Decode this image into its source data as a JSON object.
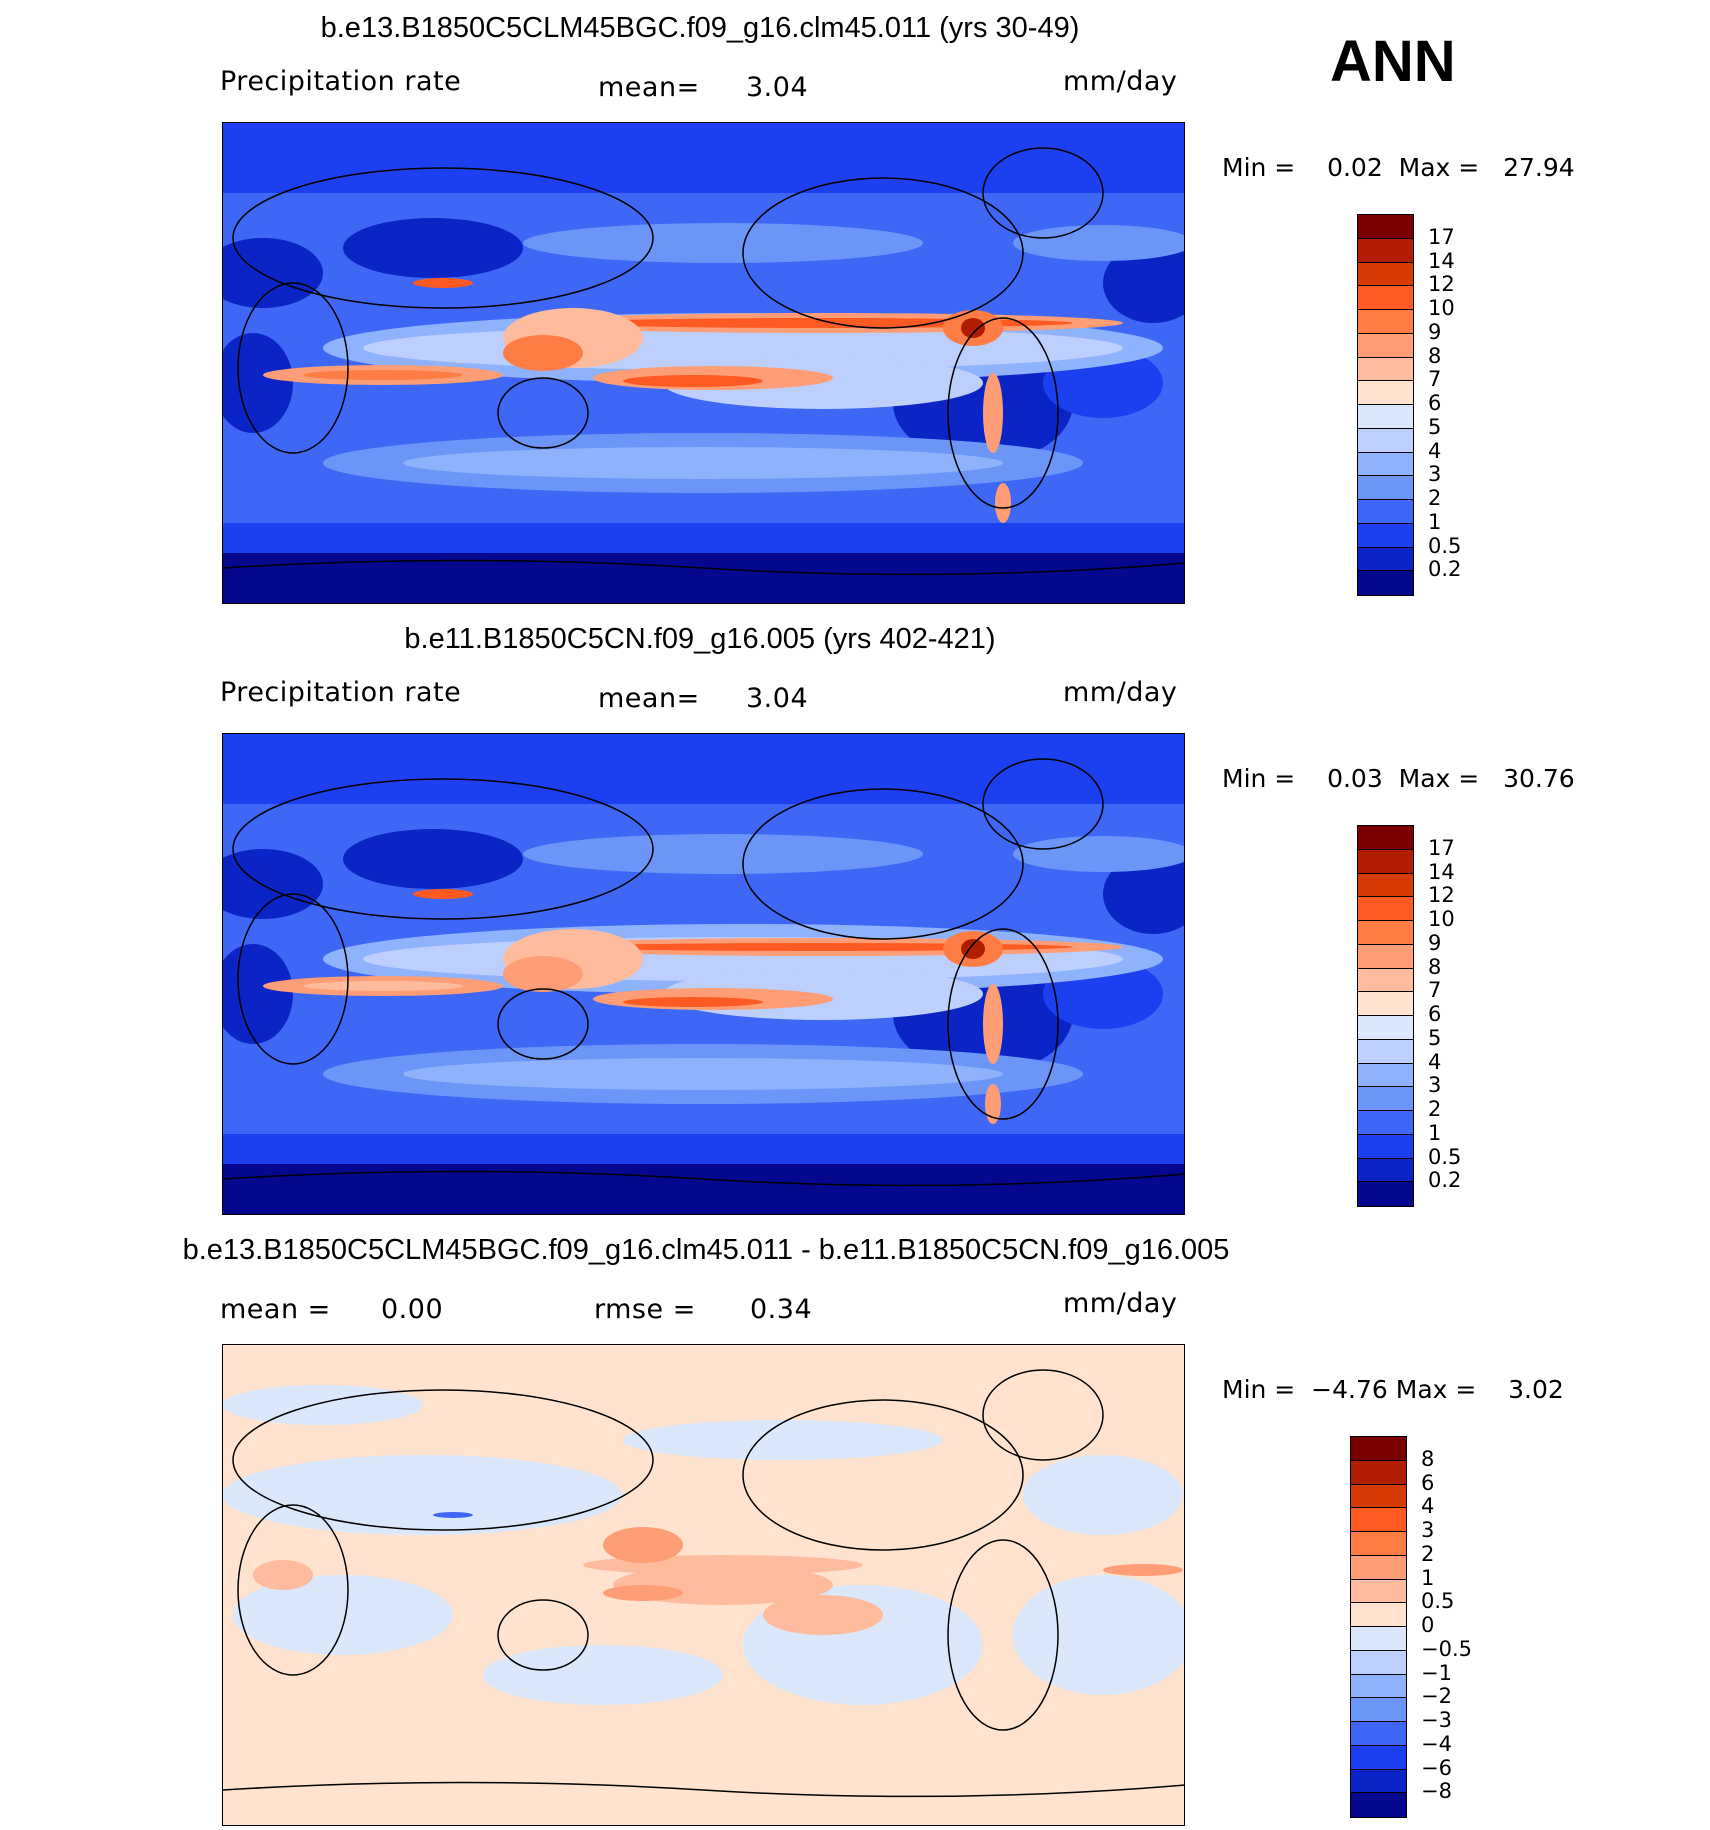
{
  "season": "ANN",
  "units": "mm/day",
  "panels": [
    {
      "title": "b.e13.B1850C5CLM45BGC.f09_g16.clm45.011 (yrs 30-49)",
      "variable": "Precipitation  rate",
      "mean_label": "mean=",
      "mean_value": "3.04",
      "min_label": "Min =",
      "min_value": "0.02",
      "max_label": "Max =",
      "max_value": "27.94"
    },
    {
      "title": "b.e11.B1850C5CN.f09_g16.005 (yrs 402-421)",
      "variable": "Precipitation  rate",
      "mean_label": "mean=",
      "mean_value": "3.04",
      "min_label": "Min =",
      "min_value": "0.03",
      "max_label": "Max =",
      "max_value": "30.76"
    },
    {
      "title": "b.e13.B1850C5CLM45BGC.f09_g16.clm45.011 - b.e11.B1850C5CN.f09_g16.005",
      "mean_label": "mean =",
      "mean_value": "0.00",
      "rmse_label": "rmse =",
      "rmse_value": "0.34",
      "min_label": "Min =",
      "min_value": "−4.76",
      "max_label": "Max =",
      "max_value": "3.02"
    }
  ],
  "colorbar_precip": {
    "labels": [
      "17",
      "14",
      "12",
      "10",
      "9",
      "8",
      "7",
      "6",
      "5",
      "4",
      "3",
      "2",
      "1",
      "0.5",
      "0.2"
    ],
    "colors": [
      "#7a0000",
      "#b01d00",
      "#d63a05",
      "#ff5a21",
      "#ff7c45",
      "#ff9e76",
      "#ffbb9d",
      "#ffe3cf",
      "#dbe8fb",
      "#bccffd",
      "#8eb2fb",
      "#6b96f8",
      "#3f67f5",
      "#1c3ff0",
      "#0b24c6",
      "#05088d"
    ]
  },
  "colorbar_diff": {
    "labels": [
      "8",
      "6",
      "4",
      "3",
      "2",
      "1",
      "0.5",
      "0",
      "−0.5",
      "−1",
      "−2",
      "−3",
      "−4",
      "−6",
      "−8"
    ],
    "colors": [
      "#7a0000",
      "#b01d00",
      "#d63a05",
      "#ff5a21",
      "#ff7c45",
      "#ff9e76",
      "#ffbb9d",
      "#ffe3cf",
      "#dbe8fb",
      "#bccffd",
      "#8eb2fb",
      "#6b96f8",
      "#3f67f5",
      "#1c3ff0",
      "#0b24c6",
      "#05088d"
    ]
  }
}
